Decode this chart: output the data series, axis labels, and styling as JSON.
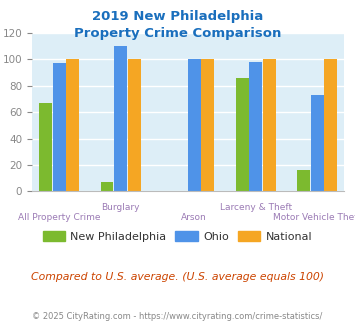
{
  "title": "2019 New Philadelphia\nProperty Crime Comparison",
  "title_color": "#1a6fbd",
  "categories": [
    "All Property Crime",
    "Burglary",
    "Arson",
    "Larceny & Theft",
    "Motor Vehicle Theft"
  ],
  "series": {
    "New Philadelphia": [
      67,
      7,
      0,
      86,
      16
    ],
    "Ohio": [
      97,
      110,
      100,
      98,
      73
    ],
    "National": [
      100,
      100,
      100,
      100,
      100
    ]
  },
  "colors": {
    "New Philadelphia": "#7cba2f",
    "Ohio": "#4f93e8",
    "National": "#f5a623"
  },
  "ylim": [
    0,
    120
  ],
  "yticks": [
    0,
    20,
    40,
    60,
    80,
    100,
    120
  ],
  "background_color": "#ddeef7",
  "grid_color": "#ffffff",
  "xlabel_upper_color": "#9b7bb5",
  "xlabel_lower_color": "#9b7bb5",
  "footnote": "Compared to U.S. average. (U.S. average equals 100)",
  "footnote_color": "#cc4400",
  "copyright": "© 2025 CityRating.com - https://www.cityrating.com/crime-statistics/",
  "copyright_color": "#888888",
  "tick_label_color": "#888888",
  "row1_indices": [
    1,
    3
  ],
  "row1_labels": [
    "Burglary",
    "Larceny & Theft"
  ],
  "row2_indices": [
    0,
    2,
    4
  ],
  "row2_labels": [
    "All Property Crime",
    "Arson",
    "Motor Vehicle Theft"
  ]
}
